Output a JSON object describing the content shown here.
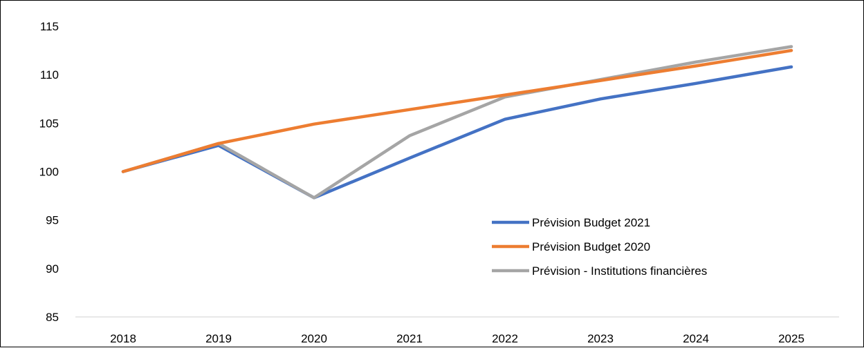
{
  "chart_data": {
    "type": "line",
    "title": "",
    "xlabel": "",
    "ylabel": "",
    "x": [
      "2018",
      "2019",
      "2020",
      "2021",
      "2022",
      "2023",
      "2024",
      "2025"
    ],
    "ylim": [
      85,
      115
    ],
    "yticks": [
      "85",
      "90",
      "95",
      "100",
      "105",
      "110",
      "115"
    ],
    "grid": false,
    "legend_position": "inside-lower-right",
    "series": [
      {
        "name": "Prévision Budget 2021",
        "color": "#4472C4",
        "values": [
          100,
          102.7,
          97.3,
          101.4,
          105.4,
          107.5,
          109.1,
          110.8
        ]
      },
      {
        "name": "Prévision Budget 2020",
        "color": "#ED7D31",
        "values": [
          100,
          102.9,
          104.9,
          106.4,
          107.9,
          109.4,
          110.9,
          112.5
        ]
      },
      {
        "name": "Prévision - Institutions financières",
        "color": "#A5A5A5",
        "values": [
          100,
          102.9,
          97.3,
          103.7,
          107.7,
          109.5,
          111.3,
          112.9
        ]
      }
    ]
  }
}
